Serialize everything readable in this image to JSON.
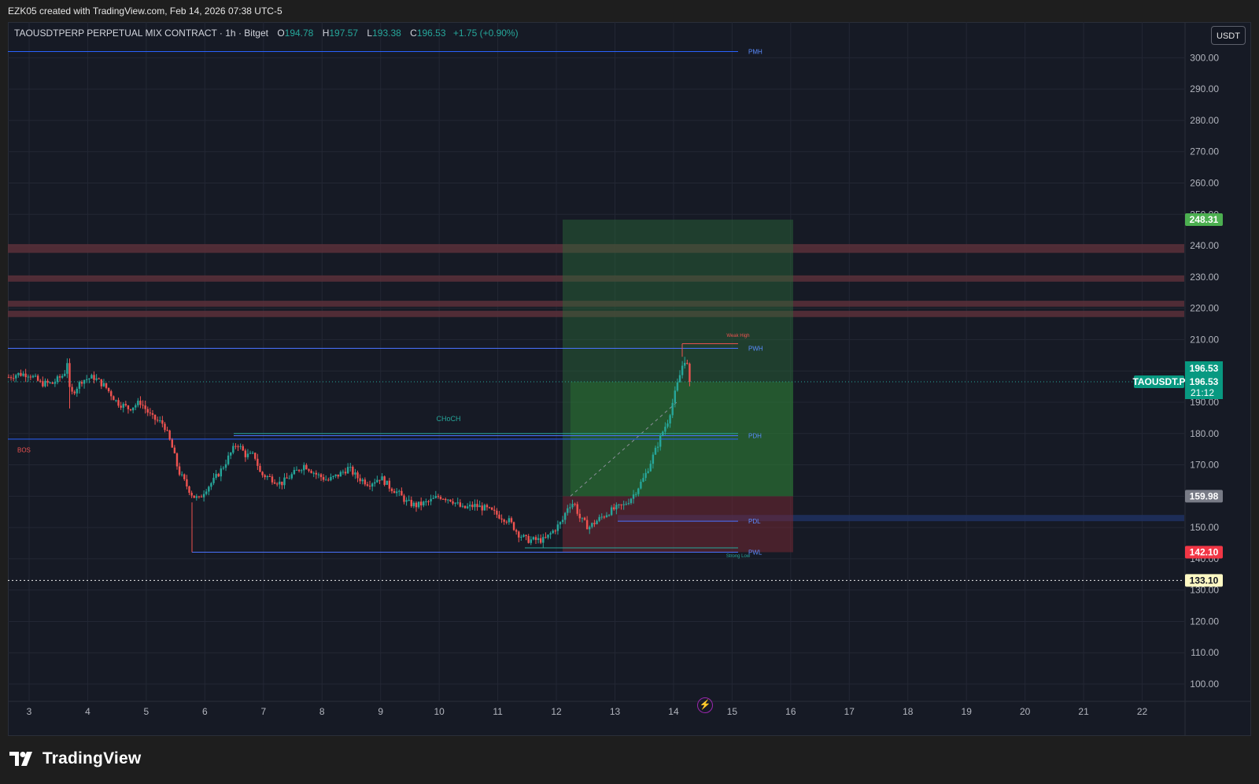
{
  "header": {
    "credit": "EZK05 created with TradingView.com, Feb 14, 2026 07:38 UTC-5"
  },
  "legend": {
    "symbol_line": "TAOUSDTPERP PERPETUAL MIX CONTRACT · 1h · Bitget",
    "open_label": "O",
    "open": "194.78",
    "high_label": "H",
    "high": "197.57",
    "low_label": "L",
    "low": "193.38",
    "close_label": "C",
    "close": "196.53",
    "change": "+1.75 (+0.90%)"
  },
  "currency_button": "USDT",
  "footer": {
    "brand": "TradingView"
  },
  "colors": {
    "background": "#161a25",
    "up": "#26a69a",
    "down": "#ef5350",
    "level_line": "#2962ff"
  },
  "chart_data": {
    "type": "candlestick",
    "symbol": "TAOUSDT.P",
    "ylim": [
      95,
      307
    ],
    "y_ticks": [
      100,
      110,
      120,
      130,
      140,
      150,
      160,
      170,
      180,
      190,
      200,
      210,
      220,
      230,
      240,
      250,
      260,
      270,
      280,
      290,
      300
    ],
    "y_tick_labels": [
      "100.00",
      "110.00",
      "120.00",
      "130.00",
      "140.00",
      "150.00",
      "160.00",
      "170.00",
      "180.00",
      "190.00",
      "200.00",
      "210.00",
      "220.00",
      "230.00",
      "240.00",
      "250.00",
      "260.00",
      "270.00",
      "280.00",
      "290.00",
      "300.00"
    ],
    "x_ticks": [
      "3",
      "4",
      "5",
      "6",
      "7",
      "8",
      "9",
      "10",
      "11",
      "12",
      "13",
      "14",
      "15",
      "16",
      "17",
      "18",
      "19",
      "20",
      "21",
      "22"
    ],
    "x_tick_days": [
      3,
      4,
      5,
      6,
      7,
      8,
      9,
      10,
      11,
      12,
      13,
      14,
      15,
      16,
      17,
      18,
      19,
      20,
      21,
      22
    ],
    "xlim": [
      2.65,
      23.7
    ],
    "price_path": [
      [
        2.65,
        198
      ],
      [
        2.8,
        199
      ],
      [
        3.0,
        199
      ],
      [
        3.2,
        196
      ],
      [
        3.4,
        196
      ],
      [
        3.6,
        199
      ],
      [
        3.65,
        203
      ],
      [
        3.7,
        192
      ],
      [
        3.9,
        197
      ],
      [
        4.1,
        198
      ],
      [
        4.3,
        195
      ],
      [
        4.5,
        190
      ],
      [
        4.7,
        188
      ],
      [
        4.9,
        190
      ],
      [
        5.1,
        185
      ],
      [
        5.3,
        183
      ],
      [
        5.45,
        175
      ],
      [
        5.55,
        168
      ],
      [
        5.7,
        163
      ],
      [
        5.8,
        160
      ],
      [
        5.9,
        159
      ],
      [
        6.0,
        162
      ],
      [
        6.15,
        165
      ],
      [
        6.3,
        169
      ],
      [
        6.45,
        174
      ],
      [
        6.55,
        177
      ],
      [
        6.7,
        173
      ],
      [
        6.85,
        173
      ],
      [
        6.95,
        167
      ],
      [
        7.1,
        166
      ],
      [
        7.3,
        164
      ],
      [
        7.5,
        167
      ],
      [
        7.7,
        170
      ],
      [
        7.9,
        167
      ],
      [
        8.1,
        165
      ],
      [
        8.3,
        167
      ],
      [
        8.45,
        169
      ],
      [
        8.6,
        166
      ],
      [
        8.8,
        164
      ],
      [
        9.0,
        166
      ],
      [
        9.15,
        163
      ],
      [
        9.3,
        161
      ],
      [
        9.45,
        158
      ],
      [
        9.6,
        157
      ],
      [
        9.8,
        158
      ],
      [
        10.0,
        160
      ],
      [
        10.2,
        159
      ],
      [
        10.4,
        156
      ],
      [
        10.6,
        157
      ],
      [
        10.8,
        156
      ],
      [
        11.0,
        154
      ],
      [
        11.2,
        152
      ],
      [
        11.35,
        148
      ],
      [
        11.5,
        146
      ],
      [
        11.6,
        146
      ],
      [
        11.8,
        146
      ],
      [
        11.95,
        149
      ],
      [
        12.1,
        152
      ],
      [
        12.2,
        157
      ],
      [
        12.3,
        158
      ],
      [
        12.4,
        153
      ],
      [
        12.55,
        150
      ],
      [
        12.75,
        153
      ],
      [
        12.9,
        155
      ],
      [
        13.0,
        156
      ],
      [
        13.15,
        157
      ],
      [
        13.3,
        160
      ],
      [
        13.5,
        166
      ],
      [
        13.7,
        175
      ],
      [
        13.8,
        180
      ],
      [
        13.9,
        184
      ],
      [
        14.0,
        191
      ],
      [
        14.1,
        198
      ],
      [
        14.18,
        204
      ],
      [
        14.25,
        201
      ],
      [
        14.3,
        196.53
      ]
    ],
    "last_price": 196.53,
    "wick_high_max": 204.5,
    "level_lines": [
      {
        "label": "PMH",
        "value": 302
      },
      {
        "label": "PWH",
        "value": 207.2
      },
      {
        "label": "PDH",
        "value": 179.3
      },
      {
        "label": "PDL",
        "value": 152
      },
      {
        "label": "PWL",
        "value": 142.1
      }
    ],
    "structure": [
      {
        "label": "BOS",
        "value": 178.2
      },
      {
        "label": "CHoCH",
        "value": 180
      },
      {
        "label": "Weak High",
        "value": 208.7
      },
      {
        "label": "Strong Low",
        "value": 143.5
      }
    ],
    "supply_zones": [
      [
        237.7,
        240.5
      ],
      [
        228.5,
        230.5
      ],
      [
        220.5,
        222.4
      ],
      [
        217.2,
        219.2
      ]
    ],
    "demand_zone": [
      152,
      154
    ],
    "position": {
      "entry": 159.98,
      "target": 248.31,
      "stop": 142.1
    },
    "price_labels": [
      {
        "text": "248.31",
        "value": 248.31
      },
      {
        "text": "196.53",
        "value": 196.53
      },
      {
        "text": "21:12",
        "value": 196.53
      },
      {
        "text": "TAOUSDT.P",
        "value": 196.53
      },
      {
        "text": "159.98",
        "value": 159.98
      },
      {
        "text": "142.10",
        "value": 142.1
      },
      {
        "text": "133.10",
        "value": 133.1
      }
    ],
    "alert_line": 133.1
  }
}
